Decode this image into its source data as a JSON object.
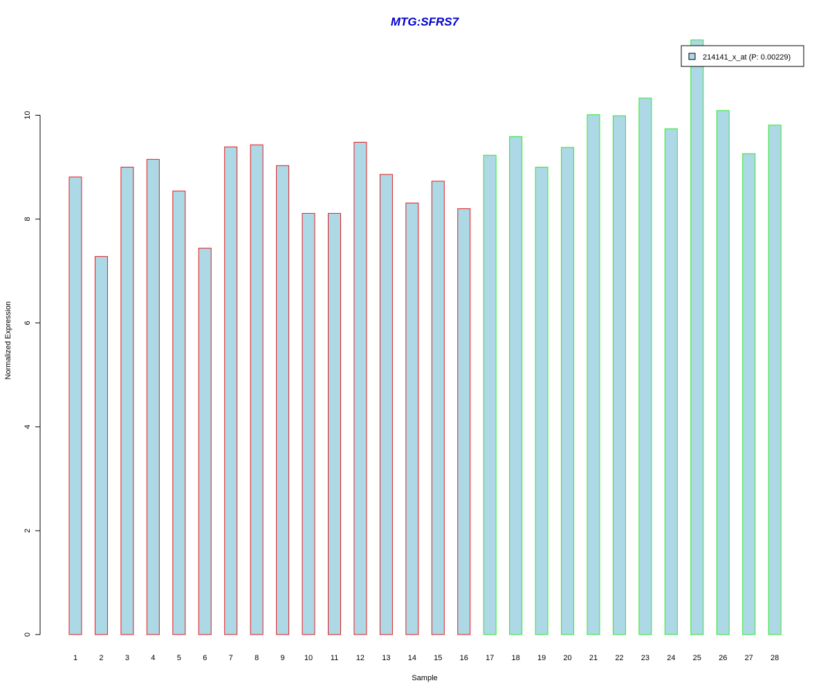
{
  "chart_data": {
    "type": "bar",
    "title": "MTG:SFRS7",
    "xlabel": "Sample",
    "ylabel": "Normalized Expression",
    "ylim": [
      0,
      11.5
    ],
    "yticks": [
      "0",
      "2",
      "4",
      "6",
      "8",
      "10"
    ],
    "grid": false,
    "legend_position": "top-right",
    "categories": [
      "1",
      "2",
      "3",
      "4",
      "5",
      "6",
      "7",
      "8",
      "9",
      "10",
      "11",
      "12",
      "13",
      "14",
      "15",
      "16",
      "17",
      "18",
      "19",
      "20",
      "21",
      "22",
      "23",
      "24",
      "25",
      "26",
      "27",
      "28"
    ],
    "series": [
      {
        "name": "214141_x_at (P: 0.00229)",
        "values": [
          8.81,
          7.28,
          9.0,
          9.15,
          8.54,
          7.44,
          9.39,
          9.43,
          9.03,
          8.11,
          8.11,
          9.48,
          8.86,
          8.31,
          8.73,
          8.2,
          9.23,
          9.59,
          9.0,
          9.38,
          10.01,
          9.99,
          10.33,
          9.74,
          11.45,
          10.09,
          9.26,
          9.81
        ],
        "groups": [
          "red",
          "red",
          "red",
          "red",
          "red",
          "red",
          "red",
          "red",
          "red",
          "red",
          "red",
          "red",
          "red",
          "red",
          "red",
          "red",
          "green",
          "green",
          "green",
          "green",
          "green",
          "green",
          "green",
          "green",
          "green",
          "green",
          "green",
          "green"
        ]
      }
    ],
    "colors": {
      "fill": "#add8e6",
      "group_red": "#e31a1c",
      "group_green": "#2ee82e",
      "title": "#0000cd",
      "axis": "#000000"
    }
  }
}
